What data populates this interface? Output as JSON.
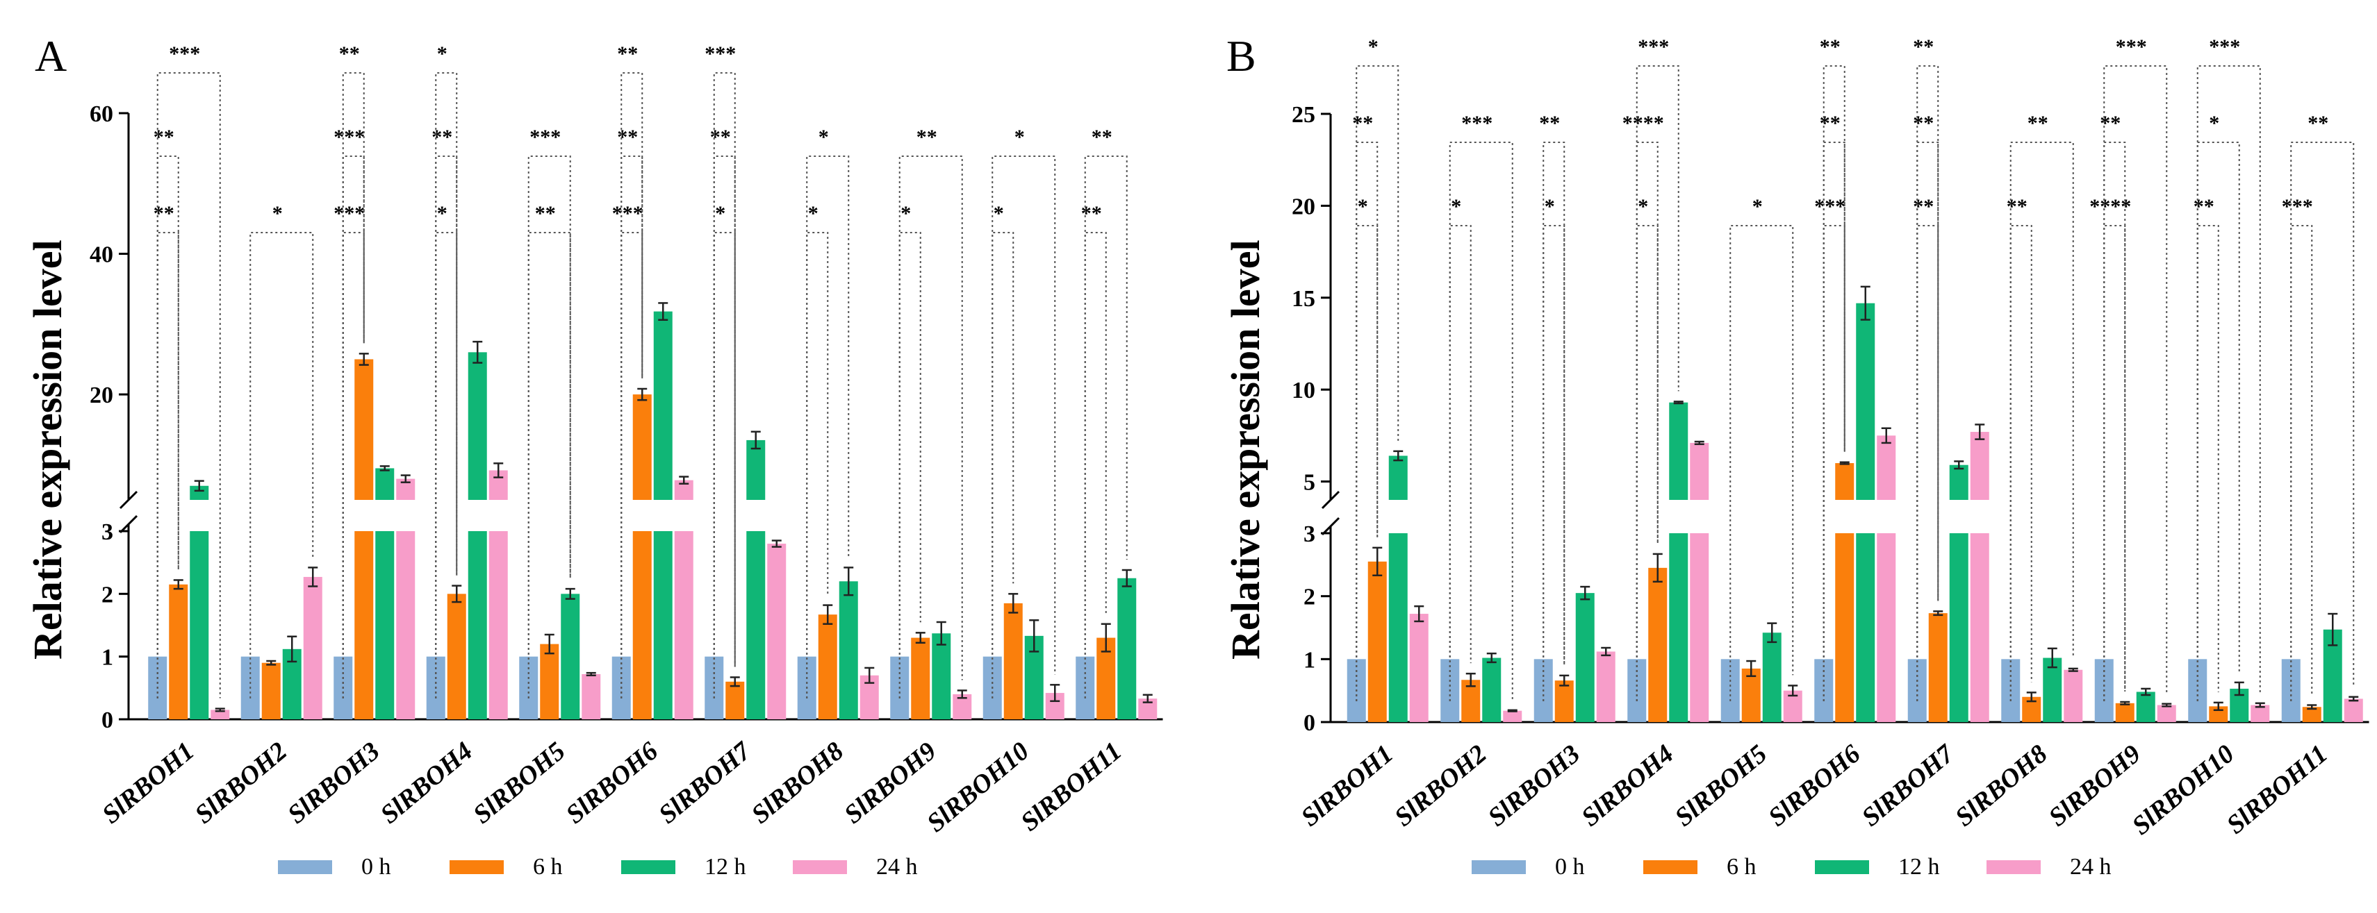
{
  "figure": {
    "legend": [
      "0 h",
      "6 h",
      "12 h",
      "24 h"
    ],
    "colors": [
      "#86aed6",
      "#fa7f0c",
      "#10b676",
      "#f79dc9"
    ],
    "ylabel": "Relative  expression level"
  },
  "chart_data": [
    {
      "panel": "A",
      "type": "bar",
      "ylabel": "Relative  expression level",
      "categories": [
        "SlRBOH1",
        "SlRBOH2",
        "SlRBOH3",
        "SlRBOH4",
        "SlRBOH5",
        "SlRBOH6",
        "SlRBOH7",
        "SlRBOH8",
        "SlRBOH9",
        "SlRBOH10",
        "SlRBOH11"
      ],
      "axis_break": {
        "lower_max": 3,
        "upper_min": 5,
        "upper_max": 60
      },
      "lower_ticks": [
        "0",
        "1",
        "2",
        "3"
      ],
      "upper_ticks": [
        "20",
        "40",
        "60"
      ],
      "series": [
        {
          "name": "0 h",
          "values": [
            1,
            1,
            1,
            1,
            1,
            1,
            1,
            1,
            1,
            1,
            1
          ],
          "errors": [
            0,
            0,
            0,
            0,
            0,
            0,
            0,
            0,
            0,
            0,
            0
          ]
        },
        {
          "name": "6 h",
          "values": [
            2.15,
            0.9,
            25,
            2,
            1.2,
            20,
            0.6,
            1.67,
            1.3,
            1.85,
            1.3
          ],
          "errors": [
            0.07,
            0.03,
            0.8,
            0.13,
            0.15,
            0.8,
            0.07,
            0.15,
            0.08,
            0.15,
            0.22
          ]
        },
        {
          "name": "12 h",
          "values": [
            7,
            1.12,
            9.5,
            26,
            2,
            31.8,
            13.5,
            2.2,
            1.37,
            1.33,
            2.25
          ],
          "errors": [
            0.7,
            0.2,
            0.3,
            1.5,
            0.08,
            1.2,
            1.2,
            0.22,
            0.18,
            0.25,
            0.13
          ]
        },
        {
          "name": "24 h",
          "values": [
            0.15,
            2.27,
            8,
            9.2,
            0.72,
            7.8,
            2.8,
            0.7,
            0.4,
            0.42,
            0.33
          ],
          "errors": [
            0.02,
            0.15,
            0.5,
            1,
            0.02,
            0.5,
            0.05,
            0.12,
            0.06,
            0.13,
            0.06
          ]
        }
      ],
      "significance": [
        {
          "label": "**",
          "level": 0,
          "pair": 1
        },
        {
          "label": "**",
          "level": 1,
          "pair": 1
        },
        {
          "label": "***",
          "level": 2,
          "pair": 3
        },
        {
          "label": "*",
          "level": 0,
          "pair": 3
        },
        {
          "label": "***",
          "level": 0,
          "pair": 1
        },
        {
          "label": "***",
          "level": 1,
          "pair": 1
        },
        {
          "label": "**",
          "level": 2,
          "pair": 1
        },
        {
          "label": "*",
          "level": 0,
          "pair": 1
        },
        {
          "label": "**",
          "level": 1,
          "pair": 1
        },
        {
          "label": "*",
          "level": 2,
          "pair": 1
        },
        {
          "label": "**",
          "level": 0,
          "pair": 2
        },
        {
          "label": "***",
          "level": 1,
          "pair": 2
        },
        {
          "label": "***",
          "level": 0,
          "pair": 1
        },
        {
          "label": "**",
          "level": 1,
          "pair": 1
        },
        {
          "label": "**",
          "level": 2,
          "pair": 1
        },
        {
          "label": "*",
          "level": 0,
          "pair": 1
        },
        {
          "label": "**",
          "level": 1,
          "pair": 1
        },
        {
          "label": "***",
          "level": 2,
          "pair": 1
        },
        {
          "label": "*",
          "level": 0,
          "pair": 1
        },
        {
          "label": "*",
          "level": 1,
          "pair": 2
        },
        {
          "label": "*",
          "level": 0,
          "pair": 1
        },
        {
          "label": "**",
          "level": 1,
          "pair": 3
        },
        {
          "label": "*",
          "level": 0,
          "pair": 1
        },
        {
          "label": "*",
          "level": 1,
          "pair": 3
        },
        {
          "label": "**",
          "level": 0,
          "pair": 1
        },
        {
          "label": "**",
          "level": 1,
          "pair": 2
        }
      ],
      "significance_groups": [
        0,
        0,
        0,
        1,
        2,
        2,
        2,
        3,
        3,
        3,
        4,
        4,
        5,
        5,
        5,
        6,
        6,
        6,
        7,
        7,
        8,
        8,
        9,
        9,
        10,
        10
      ]
    },
    {
      "panel": "B",
      "type": "bar",
      "ylabel": "Relative  expression level",
      "categories": [
        "SlRBOH1",
        "SlRBOH2",
        "SlRBOH3",
        "SlRBOH4",
        "SlRBOH5",
        "SlRBOH6",
        "SlRBOH7",
        "SlRBOH8",
        "SlRBOH9",
        "SlRBOH10",
        "SlRBOH11"
      ],
      "axis_break": {
        "lower_max": 3,
        "upper_min": 4,
        "upper_max": 25
      },
      "lower_ticks": [
        "0",
        "1",
        "2",
        "3"
      ],
      "upper_ticks": [
        "5",
        "10",
        "15",
        "20",
        "25"
      ],
      "series": [
        {
          "name": "0 h",
          "values": [
            1,
            1,
            1,
            1,
            1,
            1,
            1,
            1,
            1,
            1,
            1
          ],
          "errors": [
            0,
            0,
            0,
            0,
            0,
            0,
            0,
            0,
            0,
            0,
            0
          ]
        },
        {
          "name": "6 h",
          "values": [
            2.55,
            0.67,
            0.66,
            2.45,
            0.85,
            6,
            1.73,
            0.4,
            0.3,
            0.25,
            0.24
          ],
          "errors": [
            0.22,
            0.1,
            0.08,
            0.22,
            0.12,
            0.05,
            0.03,
            0.07,
            0.02,
            0.06,
            0.03
          ]
        },
        {
          "name": "12 h",
          "values": [
            6.4,
            1.02,
            2.05,
            9.3,
            1.42,
            14.7,
            5.9,
            1.02,
            0.48,
            0.53,
            1.47
          ],
          "errors": [
            0.25,
            0.07,
            0.1,
            0.05,
            0.15,
            0.9,
            0.2,
            0.15,
            0.05,
            0.1,
            0.25
          ]
        },
        {
          "name": "24 h",
          "values": [
            1.72,
            0.18,
            1.12,
            7.1,
            0.5,
            7.5,
            7.7,
            0.83,
            0.27,
            0.27,
            0.37
          ],
          "errors": [
            0.12,
            0.01,
            0.06,
            0.07,
            0.08,
            0.4,
            0.4,
            0.02,
            0.02,
            0.03,
            0.03
          ]
        }
      ],
      "significance": [
        {
          "label": "*",
          "level": 0,
          "pair": 1
        },
        {
          "label": "**",
          "level": 1,
          "pair": 1
        },
        {
          "label": "*",
          "level": 2,
          "pair": 2
        },
        {
          "label": "*",
          "level": 0,
          "pair": 1
        },
        {
          "label": "***",
          "level": 1,
          "pair": 3
        },
        {
          "label": "*",
          "level": 0,
          "pair": 1
        },
        {
          "label": "**",
          "level": 1,
          "pair": 1
        },
        {
          "label": "*",
          "level": 0,
          "pair": 1
        },
        {
          "label": "****",
          "level": 1,
          "pair": 1
        },
        {
          "label": "***",
          "level": 2,
          "pair": 2
        },
        {
          "label": "*",
          "level": 0,
          "pair": 3
        },
        {
          "label": "***",
          "level": 0,
          "pair": 1
        },
        {
          "label": "**",
          "level": 1,
          "pair": 1
        },
        {
          "label": "**",
          "level": 2,
          "pair": 1
        },
        {
          "label": "**",
          "level": 0,
          "pair": 1
        },
        {
          "label": "**",
          "level": 1,
          "pair": 1
        },
        {
          "label": "**",
          "level": 2,
          "pair": 1
        },
        {
          "label": "**",
          "level": 0,
          "pair": 1
        },
        {
          "label": "**",
          "level": 1,
          "pair": 3
        },
        {
          "label": "****",
          "level": 0,
          "pair": 1
        },
        {
          "label": "**",
          "level": 1,
          "pair": 1
        },
        {
          "label": "***",
          "level": 2,
          "pair": 3
        },
        {
          "label": "**",
          "level": 0,
          "pair": 1
        },
        {
          "label": "*",
          "level": 1,
          "pair": 2
        },
        {
          "label": "***",
          "level": 2,
          "pair": 3
        },
        {
          "label": "***",
          "level": 0,
          "pair": 1
        },
        {
          "label": "**",
          "level": 1,
          "pair": 3
        }
      ],
      "significance_groups": [
        0,
        0,
        0,
        1,
        1,
        2,
        2,
        3,
        3,
        3,
        4,
        5,
        5,
        5,
        6,
        6,
        6,
        7,
        7,
        8,
        8,
        8,
        9,
        9,
        9,
        10,
        10
      ]
    }
  ]
}
